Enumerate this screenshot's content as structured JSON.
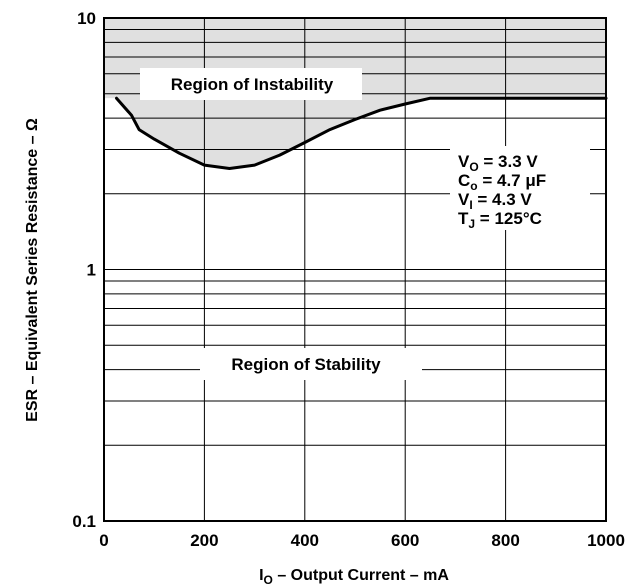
{
  "chart_data": {
    "type": "line",
    "title": "",
    "x_axis": {
      "label_main": "I",
      "label_sub": "O",
      "label_rest": " – Output Current – mA",
      "range": [
        0,
        1000
      ],
      "ticks": [
        0,
        200,
        400,
        600,
        800,
        1000
      ],
      "tick_labels": [
        "0",
        "200",
        "400",
        "600",
        "800",
        "1000"
      ]
    },
    "y_axis": {
      "label": "ESR – Equivalent Series Resistance – Ω",
      "scale": "log",
      "range": [
        0.1,
        10
      ],
      "major_ticks": [
        0.1,
        1,
        10
      ],
      "tick_labels": [
        "0.1",
        "1",
        "10"
      ]
    },
    "grid": true,
    "series": [
      {
        "points": [
          {
            "x": 25,
            "y": 4.8
          },
          {
            "x": 55,
            "y": 4.1
          },
          {
            "x": 70,
            "y": 3.6
          },
          {
            "x": 100,
            "y": 3.3
          },
          {
            "x": 150,
            "y": 2.9
          },
          {
            "x": 200,
            "y": 2.6
          },
          {
            "x": 250,
            "y": 2.52
          },
          {
            "x": 300,
            "y": 2.6
          },
          {
            "x": 350,
            "y": 2.85
          },
          {
            "x": 400,
            "y": 3.2
          },
          {
            "x": 450,
            "y": 3.6
          },
          {
            "x": 500,
            "y": 3.95
          },
          {
            "x": 550,
            "y": 4.3
          },
          {
            "x": 600,
            "y": 4.55
          },
          {
            "x": 650,
            "y": 4.8
          },
          {
            "x": 700,
            "y": 4.8
          },
          {
            "x": 800,
            "y": 4.8
          },
          {
            "x": 900,
            "y": 4.8
          },
          {
            "x": 1000,
            "y": 4.8
          }
        ]
      }
    ],
    "annotations": {
      "instability": "Region of Instability",
      "stability": "Region of Stability"
    },
    "conditions": [
      {
        "main": "V",
        "sub": "O",
        "rest": " = 3.3 V"
      },
      {
        "main": "C",
        "sub": "o",
        "rest": " = 4.7 μF"
      },
      {
        "main": "V",
        "sub": "I",
        "rest": " = 4.3 V"
      },
      {
        "main": "T",
        "sub": "J",
        "rest": " = 125°C"
      }
    ],
    "colors": {
      "instability_fill": "#e0e0e0",
      "line": "#000000",
      "grid": "#000000"
    }
  }
}
